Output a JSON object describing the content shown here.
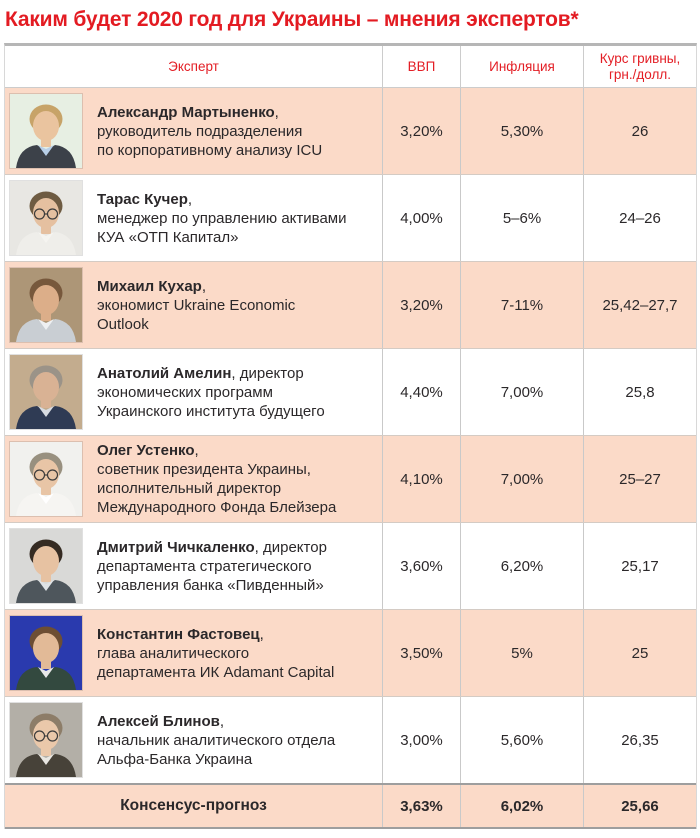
{
  "title": "Каким будет 2020 год для Украины – мнения экспертов*",
  "accent_color": "#e31e25",
  "row_pink_color": "#fbdac8",
  "table": {
    "columns": [
      "Эксперт",
      "ВВП",
      "Инфляция",
      "Курс гривны, грн./долл."
    ],
    "experts": [
      {
        "name": "Александр Мартыненко",
        "role_inline": "",
        "role_lines": [
          "руководитель подразделения",
          "по корпоративному анализу ICU"
        ],
        "gdp": "3,20%",
        "inflation": "5,30%",
        "rate": "26",
        "photo": {
          "label": "Александр Мартыненко photo",
          "bg": "#e7efe3",
          "hair": "#c7a368",
          "skin": "#eac49f",
          "coat": "#3c4149",
          "shirt": "#b8cfe8",
          "glasses": false
        }
      },
      {
        "name": "Тарас Кучер",
        "role_inline": "",
        "role_lines": [
          "менеджер по управлению активами",
          "КУА «ОТП Капитал»"
        ],
        "gdp": "4,00%",
        "inflation": "5–6%",
        "rate": "24–26",
        "photo": {
          "label": "Тарас Кучер photo",
          "bg": "#e8e7e3",
          "hair": "#6e5b42",
          "skin": "#e5c0a0",
          "coat": "#efeeea",
          "shirt": "#f5f4f0",
          "glasses": true
        }
      },
      {
        "name": "Михаил Кухар",
        "role_inline": "",
        "role_lines": [
          "экономист Ukraine Economic",
          "Outlook"
        ],
        "gdp": "3,20%",
        "inflation": "7-11%",
        "rate": "25,42–27,7",
        "photo": {
          "label": "Михаил Кухар photo",
          "bg": "#ad9677",
          "hair": "#77583c",
          "skin": "#dcae89",
          "coat": "#c9ced3",
          "shirt": "#eef0f2",
          "glasses": false
        }
      },
      {
        "name": "Анатолий Амелин",
        "role_inline": "директор",
        "role_lines": [
          "экономических программ",
          "Украинского института будущего"
        ],
        "gdp": "4,40%",
        "inflation": "7,00%",
        "rate": "25,8",
        "photo": {
          "label": "Анатолий Амелин photo",
          "bg": "#c3ac8e",
          "hair": "#9b9388",
          "skin": "#d9b294",
          "coat": "#2f3b54",
          "shirt": "#d8dce2",
          "glasses": false
        }
      },
      {
        "name": "Олег Устенко",
        "role_inline": "",
        "role_lines": [
          "советник президента Украины,",
          "исполнительный директор",
          "Международного Фонда Блейзера"
        ],
        "gdp": "4,10%",
        "inflation": "7,00%",
        "rate": "25–27",
        "photo": {
          "label": "Олег Устенко photo",
          "bg": "#f1f1ee",
          "hair": "#98907f",
          "skin": "#e8c5a6",
          "coat": "#f6f5f2",
          "shirt": "#ffffff",
          "glasses": true
        }
      },
      {
        "name": "Дмитрий Чичкаленко",
        "role_inline": "директор",
        "role_lines": [
          "департамента стратегического",
          "управления банка «Пивденный»"
        ],
        "gdp": "3,60%",
        "inflation": "6,20%",
        "rate": "25,17",
        "photo": {
          "label": "Дмитрий Чичкаленко photo",
          "bg": "#d9d9d7",
          "hair": "#352b22",
          "skin": "#e7c2a2",
          "coat": "#4e565c",
          "shirt": "#dfe3e6",
          "glasses": false
        }
      },
      {
        "name": "Константин Фастовец",
        "role_inline": "",
        "role_lines": [
          "глава аналитического",
          "департамента ИК Adamant Capital"
        ],
        "gdp": "3,50%",
        "inflation": "5%",
        "rate": "25",
        "photo": {
          "label": "Константин Фастовец photo",
          "bg": "#2a3aae",
          "hair": "#6d4e33",
          "skin": "#e2ba97",
          "coat": "#33493f",
          "shirt": "#e8e8e8",
          "glasses": false
        }
      },
      {
        "name": "Алексей Блинов",
        "role_inline": "",
        "role_lines": [
          "начальник аналитического отдела",
          "Альфа-Банка Украина"
        ],
        "gdp": "3,00%",
        "inflation": "5,60%",
        "rate": "26,35",
        "photo": {
          "label": "Алексей Блинов photo",
          "bg": "#b3afa7",
          "hair": "#8d7d68",
          "skin": "#eac8aa",
          "coat": "#474239",
          "shirt": "#e9e7e2",
          "glasses": true
        }
      }
    ],
    "consensus": {
      "label": "Консенсус-прогноз",
      "gdp": "3,63%",
      "inflation": "6,02%",
      "rate": "25,66"
    }
  }
}
